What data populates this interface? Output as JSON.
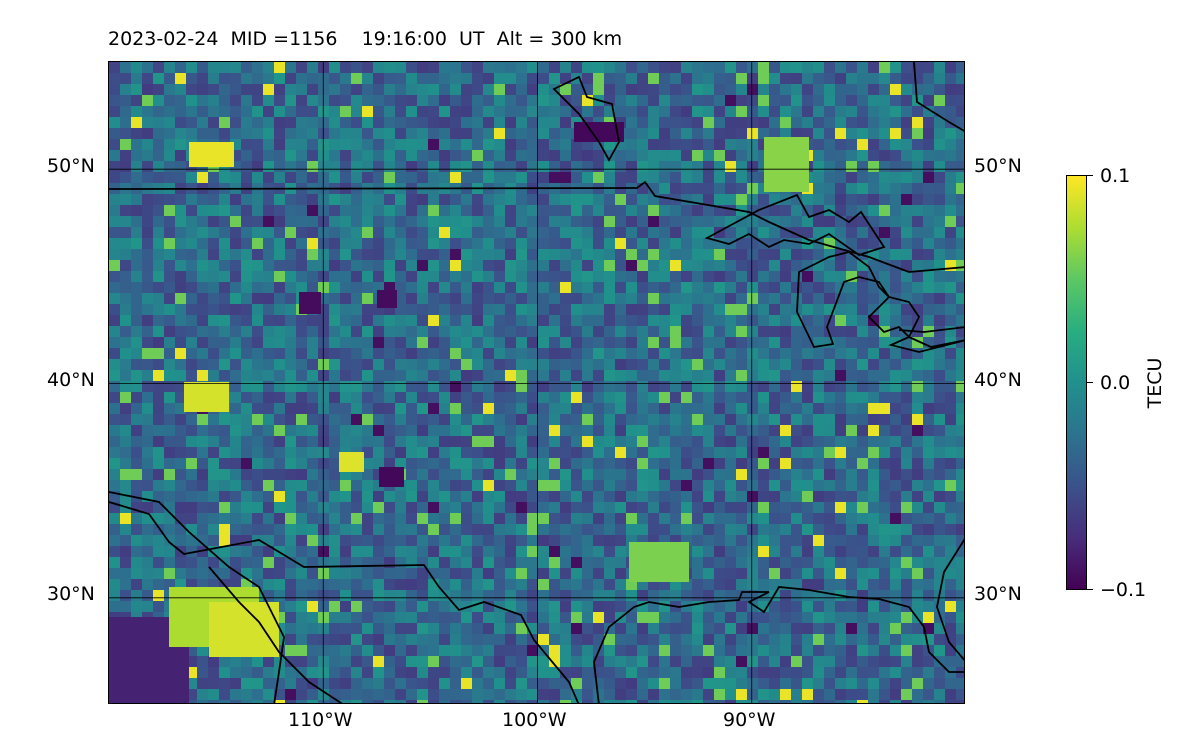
{
  "header": {
    "title": "2023-02-24  MID =1156    19:16:00  UT  Alt = 300 km"
  },
  "map": {
    "lon_range": [
      -120,
      -80
    ],
    "lat_range": [
      25,
      55
    ],
    "lat_ticks": [
      {
        "value": 30,
        "label": "30°N"
      },
      {
        "value": 40,
        "label": "40°N"
      },
      {
        "value": 50,
        "label": "50°N"
      }
    ],
    "lon_ticks": [
      {
        "value": -110,
        "label": "110°W"
      },
      {
        "value": -100,
        "label": "100°W"
      },
      {
        "value": -90,
        "label": "90°W"
      }
    ],
    "grid": true,
    "colormap": "viridis",
    "coastlines": "black"
  },
  "colorbar": {
    "label": "TECU",
    "min": -0.1,
    "max": 0.1,
    "ticks": [
      {
        "value": 0.1,
        "label": "0.1"
      },
      {
        "value": 0.0,
        "label": "0.0"
      },
      {
        "value": -0.1,
        "label": "−0.1"
      }
    ]
  }
}
